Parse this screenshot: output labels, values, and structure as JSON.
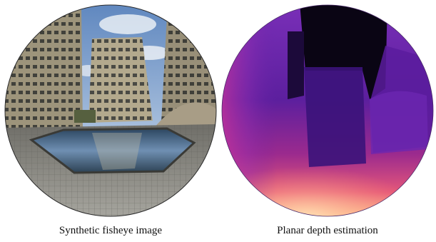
{
  "figure": {
    "panels": [
      {
        "caption": "Synthetic fisheye image"
      },
      {
        "caption": "Planar depth estimation"
      }
    ]
  },
  "colors": {
    "sky": "#7fa4cf",
    "building": "#b5ab8f",
    "pool_water": "#3f5f7e",
    "deck_tiles": "#8f8f88",
    "depth_far": "#0a0514",
    "depth_mid": "#5a1f9a",
    "depth_near": "#ffd2a0"
  }
}
